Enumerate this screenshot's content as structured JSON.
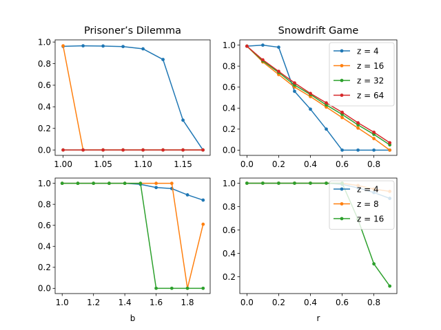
{
  "colors": {
    "C0": "#1f77b4",
    "C1": "#ff7f0e",
    "C2": "#2ca02c",
    "C3": "#d62728"
  },
  "chart_data": [
    {
      "type": "line",
      "title": "Prisoner’s Dilemma",
      "xlabel": "",
      "ylabel": "",
      "xlim": [
        0.99,
        1.184
      ],
      "ylim": [
        -0.05,
        1.02
      ],
      "xticks": [
        1.0,
        1.05,
        1.1,
        1.15
      ],
      "xtick_labels": [
        "1.00",
        "1.05",
        "1.10",
        "1.15"
      ],
      "yticks": [
        0.0,
        0.2,
        0.4,
        0.6,
        0.8,
        1.0
      ],
      "ytick_labels": [
        "0.0",
        "0.2",
        "0.4",
        "0.6",
        "0.8",
        "1.0"
      ],
      "legend": null,
      "series": [
        {
          "name": "z = 4",
          "color": "C0",
          "x": [
            1.0,
            1.025,
            1.05,
            1.075,
            1.1,
            1.125,
            1.15,
            1.175
          ],
          "y": [
            0.96,
            0.965,
            0.963,
            0.958,
            0.937,
            0.838,
            0.276,
            0.0
          ]
        },
        {
          "name": "z = 16",
          "color": "C1",
          "x": [
            1.0,
            1.025,
            1.05,
            1.075,
            1.1,
            1.125,
            1.15,
            1.175
          ],
          "y": [
            0.965,
            0.0,
            0.0,
            0.0,
            0.0,
            0.0,
            0.0,
            0.0
          ]
        },
        {
          "name": "z = 32",
          "color": "C2",
          "x": [
            1.0,
            1.025,
            1.05,
            1.075,
            1.1,
            1.125,
            1.15,
            1.175
          ],
          "y": [
            0.0,
            0.0,
            0.0,
            0.0,
            0.0,
            0.0,
            0.0,
            0.0
          ]
        },
        {
          "name": "z = 64",
          "color": "C3",
          "x": [
            1.0,
            1.025,
            1.05,
            1.075,
            1.1,
            1.125,
            1.15,
            1.175
          ],
          "y": [
            0.0,
            0.0,
            0.0,
            0.0,
            0.0,
            0.0,
            0.0,
            0.0
          ]
        }
      ]
    },
    {
      "type": "line",
      "title": "Snowdrift Game",
      "xlabel": "",
      "ylabel": "",
      "xlim": [
        -0.045,
        0.945
      ],
      "ylim": [
        -0.05,
        1.05
      ],
      "xticks": [
        0.0,
        0.2,
        0.4,
        0.6,
        0.8
      ],
      "xtick_labels": [
        "0.0",
        "0.2",
        "0.4",
        "0.6",
        "0.8"
      ],
      "yticks": [
        0.0,
        0.2,
        0.4,
        0.6,
        0.8,
        1.0
      ],
      "ytick_labels": [
        "0.0",
        "0.2",
        "0.4",
        "0.6",
        "0.8",
        "1.0"
      ],
      "legend": "upper right",
      "series": [
        {
          "name": "z = 4",
          "color": "C0",
          "x": [
            0.0,
            0.1,
            0.2,
            0.3,
            0.4,
            0.5,
            0.6,
            0.7,
            0.8,
            0.9
          ],
          "y": [
            0.99,
            1.0,
            0.98,
            0.56,
            0.39,
            0.2,
            0.0,
            0.0,
            0.0,
            0.0
          ]
        },
        {
          "name": "z = 16",
          "color": "C1",
          "x": [
            0.0,
            0.1,
            0.2,
            0.3,
            0.4,
            0.5,
            0.6,
            0.7,
            0.8,
            0.9
          ],
          "y": [
            0.99,
            0.84,
            0.72,
            0.6,
            0.51,
            0.41,
            0.31,
            0.21,
            0.11,
            0.0
          ]
        },
        {
          "name": "z = 32",
          "color": "C2",
          "x": [
            0.0,
            0.1,
            0.2,
            0.3,
            0.4,
            0.5,
            0.6,
            0.7,
            0.8,
            0.9
          ],
          "y": [
            0.99,
            0.85,
            0.74,
            0.62,
            0.53,
            0.43,
            0.34,
            0.24,
            0.15,
            0.05
          ]
        },
        {
          "name": "z = 64",
          "color": "C3",
          "x": [
            0.0,
            0.1,
            0.2,
            0.3,
            0.4,
            0.5,
            0.6,
            0.7,
            0.8,
            0.9
          ],
          "y": [
            0.99,
            0.86,
            0.75,
            0.64,
            0.54,
            0.45,
            0.36,
            0.26,
            0.17,
            0.07
          ]
        }
      ]
    },
    {
      "type": "line",
      "title": "",
      "xlabel": "b",
      "ylabel": "",
      "xlim": [
        0.955,
        1.945
      ],
      "ylim": [
        -0.05,
        1.05
      ],
      "xticks": [
        1.0,
        1.2,
        1.4,
        1.6,
        1.8
      ],
      "xtick_labels": [
        "1.0",
        "1.2",
        "1.4",
        "1.6",
        "1.8"
      ],
      "yticks": [
        0.0,
        0.2,
        0.4,
        0.6,
        0.8,
        1.0
      ],
      "ytick_labels": [
        "0.0",
        "0.2",
        "0.4",
        "0.6",
        "0.8",
        "1.0"
      ],
      "legend": null,
      "series": [
        {
          "name": "z = 4",
          "color": "C0",
          "x": [
            1.0,
            1.1,
            1.2,
            1.3,
            1.4,
            1.5,
            1.6,
            1.7,
            1.8,
            1.9
          ],
          "y": [
            1.0,
            1.0,
            1.0,
            1.0,
            1.0,
            0.99,
            0.96,
            0.95,
            0.89,
            0.84
          ]
        },
        {
          "name": "z = 8",
          "color": "C1",
          "x": [
            1.0,
            1.1,
            1.2,
            1.3,
            1.4,
            1.5,
            1.6,
            1.7,
            1.8,
            1.9
          ],
          "y": [
            1.0,
            1.0,
            1.0,
            1.0,
            1.0,
            1.0,
            1.0,
            1.0,
            0.0,
            0.61
          ]
        },
        {
          "name": "z = 16",
          "color": "C2",
          "x": [
            1.0,
            1.1,
            1.2,
            1.3,
            1.4,
            1.5,
            1.6,
            1.7,
            1.8,
            1.9
          ],
          "y": [
            1.0,
            1.0,
            1.0,
            1.0,
            1.0,
            1.0,
            0.0,
            0.0,
            0.0,
            0.0
          ]
        }
      ]
    },
    {
      "type": "line",
      "title": "",
      "xlabel": "r",
      "ylabel": "",
      "xlim": [
        -0.045,
        0.945
      ],
      "ylim": [
        0.056,
        1.044
      ],
      "xticks": [
        0.0,
        0.2,
        0.4,
        0.6,
        0.8
      ],
      "xtick_labels": [
        "0.0",
        "0.2",
        "0.4",
        "0.6",
        "0.8"
      ],
      "yticks": [
        0.2,
        0.4,
        0.6,
        0.8,
        1.0
      ],
      "ytick_labels": [
        "0.2",
        "0.4",
        "0.6",
        "0.8",
        "1.0"
      ],
      "legend": "upper right",
      "series": [
        {
          "name": "z = 4",
          "color": "C0",
          "x": [
            0.0,
            0.1,
            0.2,
            0.3,
            0.4,
            0.5,
            0.6,
            0.7,
            0.8,
            0.9
          ],
          "y": [
            1.0,
            1.0,
            1.0,
            1.0,
            1.0,
            1.0,
            0.99,
            0.96,
            0.92,
            0.87
          ]
        },
        {
          "name": "z = 8",
          "color": "C1",
          "x": [
            0.0,
            0.1,
            0.2,
            0.3,
            0.4,
            0.5,
            0.6,
            0.7,
            0.8,
            0.9
          ],
          "y": [
            1.0,
            1.0,
            1.0,
            1.0,
            1.0,
            1.0,
            1.0,
            0.98,
            0.95,
            0.93
          ]
        },
        {
          "name": "z = 16",
          "color": "C2",
          "x": [
            0.0,
            0.1,
            0.2,
            0.3,
            0.4,
            0.5,
            0.6,
            0.7,
            0.8,
            0.9
          ],
          "y": [
            1.0,
            1.0,
            1.0,
            1.0,
            1.0,
            1.0,
            1.0,
            0.69,
            0.31,
            0.12
          ]
        }
      ]
    }
  ]
}
